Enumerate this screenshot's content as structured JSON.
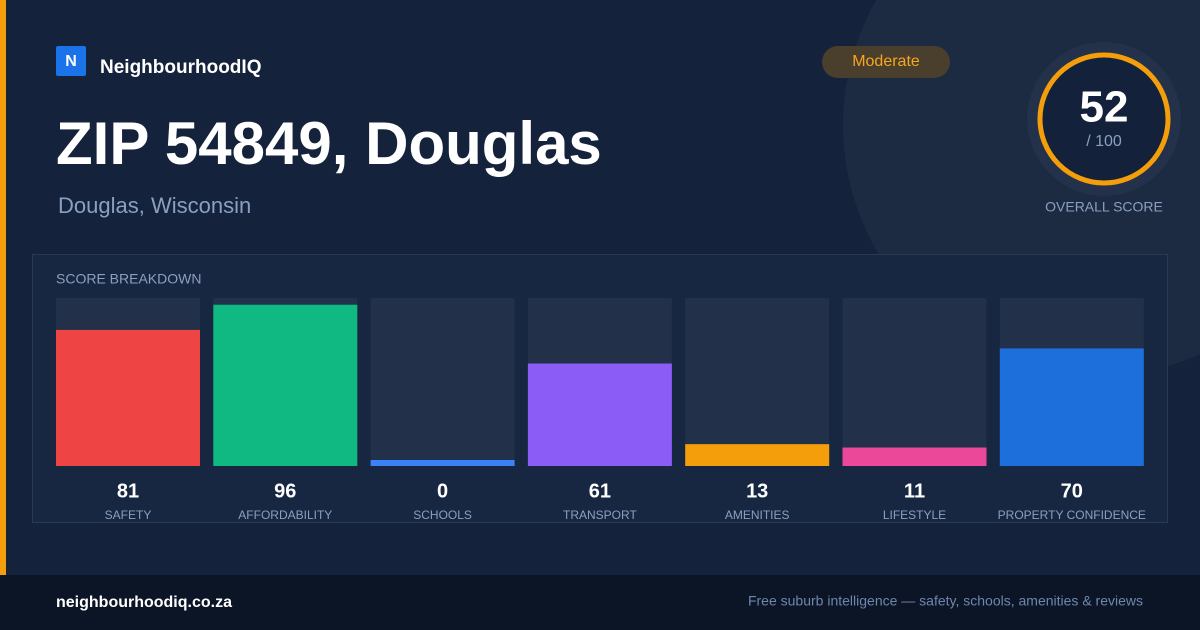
{
  "brand": "NeighbourhoodIQ",
  "brand_icon": "N",
  "badge": "Moderate",
  "title": "ZIP 54849, Douglas",
  "subtitle": "Douglas, Wisconsin",
  "score": {
    "value": 52,
    "max_label": "/ 100",
    "label": "OVERALL SCORE"
  },
  "breakdown": {
    "title": "SCORE BREAKDOWN",
    "max": 100,
    "items": [
      {
        "label": "SAFETY",
        "value": 81,
        "color": "#ef4444"
      },
      {
        "label": "AFFORDABILITY",
        "value": 96,
        "color": "#10b981"
      },
      {
        "label": "SCHOOLS",
        "value": 0,
        "color": "#3b82f6"
      },
      {
        "label": "TRANSPORT",
        "value": 61,
        "color": "#8b5cf6"
      },
      {
        "label": "AMENITIES",
        "value": 13,
        "color": "#f59e0b"
      },
      {
        "label": "LIFESTYLE",
        "value": 11,
        "color": "#ec4899"
      },
      {
        "label": "PROPERTY CONFIDENCE",
        "value": 70,
        "color": "#1d6fdc"
      }
    ]
  },
  "footer": {
    "url": "neighbourhoodiq.co.za",
    "tagline": "Free suburb intelligence — safety, schools, amenities & reviews"
  }
}
